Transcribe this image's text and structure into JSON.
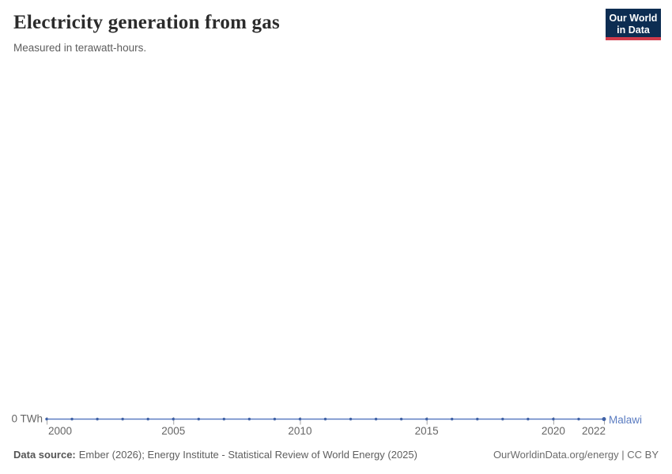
{
  "header": {
    "title": "Electricity generation from gas",
    "subtitle": "Measured in terawatt-hours.",
    "logo": {
      "line1": "Our World",
      "line2": "in Data",
      "bg_color": "#0d2d52",
      "accent_color": "#d13b4b"
    }
  },
  "chart_data": {
    "type": "line",
    "title": "Electricity generation from gas",
    "subtitle": "Measured in terawatt-hours.",
    "ylabel": "terawatt-hours",
    "xlabel": "",
    "x": [
      2000,
      2001,
      2002,
      2003,
      2004,
      2005,
      2006,
      2007,
      2008,
      2009,
      2010,
      2011,
      2012,
      2013,
      2014,
      2015,
      2016,
      2017,
      2018,
      2019,
      2020,
      2021,
      2022
    ],
    "series": [
      {
        "name": "Malawi",
        "color": "#5b7cc1",
        "dot_color": "#3f61a5",
        "values": [
          0,
          0,
          0,
          0,
          0,
          0,
          0,
          0,
          0,
          0,
          0,
          0,
          0,
          0,
          0,
          0,
          0,
          0,
          0,
          0,
          0,
          0,
          0
        ]
      }
    ],
    "xlim": [
      2000,
      2022
    ],
    "ylim": [
      0,
      0
    ],
    "grid": false,
    "legend_position": "end-of-line",
    "y_axis_label": "0 TWh",
    "x_ticks": [
      {
        "year": 2000,
        "label": "2000",
        "align": "start"
      },
      {
        "year": 2005,
        "label": "2005",
        "align": "middle"
      },
      {
        "year": 2010,
        "label": "2010",
        "align": "middle"
      },
      {
        "year": 2015,
        "label": "2015",
        "align": "middle"
      },
      {
        "year": 2020,
        "label": "2020",
        "align": "middle"
      },
      {
        "year": 2022,
        "label": "2022",
        "align": "end"
      }
    ],
    "colors": {
      "tick": "#a6a6a6",
      "axis_label": "#666666"
    }
  },
  "footer": {
    "source_label": "Data source:",
    "source_text": "Ember (2026); Energy Institute - Statistical Review of World Energy (2025)",
    "credit": "OurWorldinData.org/energy | CC BY"
  }
}
